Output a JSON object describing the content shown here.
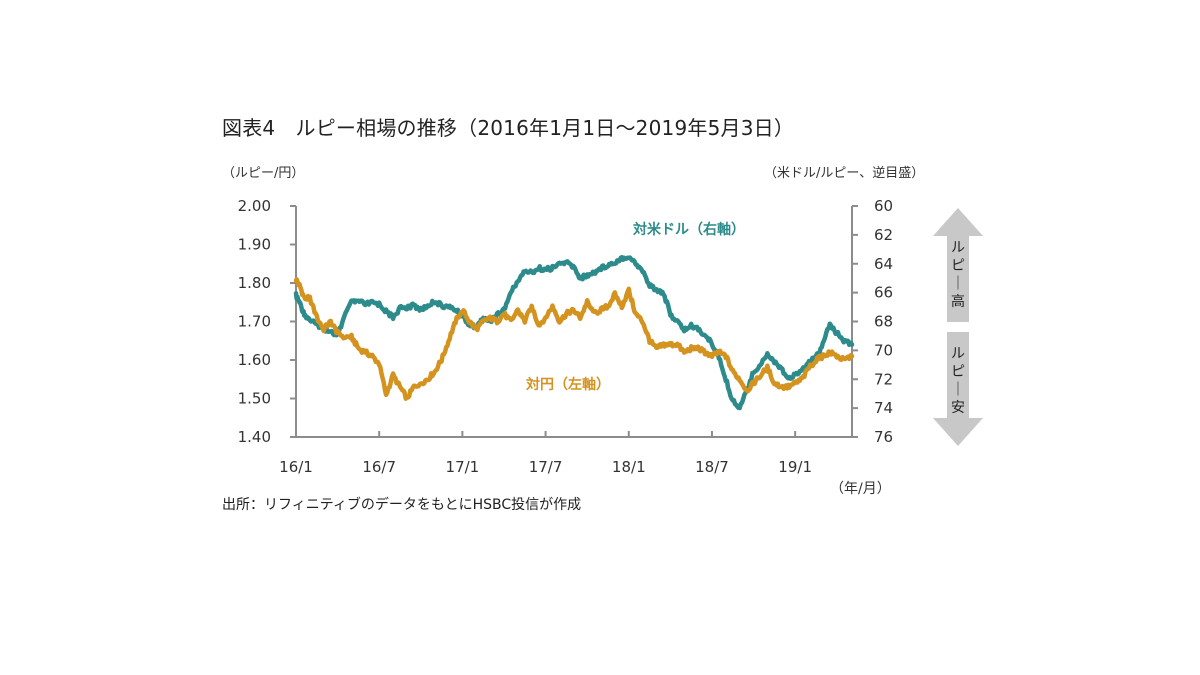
{
  "chart_data": {
    "type": "line",
    "title": "図表4　ルピー相場の推移（2016年1月1日～2019年5月3日）",
    "ylabel_left": "（ルピー/円）",
    "ylabel_right": "（米ドル/ルピー、逆目盛）",
    "xlabel": "（年/月）",
    "source": "出所：リフィニティブのデータをもとにHSBC投信が作成",
    "x_ticks": [
      "16/1",
      "16/7",
      "17/1",
      "17/7",
      "18/1",
      "18/7",
      "19/1"
    ],
    "y_left": {
      "ticks": [
        "2.00",
        "1.90",
        "1.80",
        "1.70",
        "1.60",
        "1.50",
        "1.40"
      ],
      "lim": [
        1.4,
        2.0
      ]
    },
    "y_right": {
      "ticks": [
        "60",
        "62",
        "64",
        "66",
        "68",
        "70",
        "72",
        "74",
        "76"
      ],
      "lim": [
        60,
        76
      ],
      "inverted": true
    },
    "x_range_months": [
      0,
      40.1
    ],
    "grid": false,
    "annotations": {
      "up_arrow": "ルピー高",
      "down_arrow": "ルピー安"
    },
    "series": [
      {
        "name": "対米ドル（右軸）",
        "axis": "right",
        "color": "#2e8b8b",
        "x": [
          0,
          0.3,
          0.6,
          1,
          1.5,
          2,
          2.5,
          3,
          3.5,
          4,
          4.5,
          5,
          5.5,
          6,
          6.5,
          7,
          7.5,
          8,
          8.5,
          9,
          9.5,
          10,
          10.5,
          11,
          11.5,
          12,
          12.5,
          13,
          13.5,
          14,
          14.5,
          15,
          15.5,
          16,
          16.5,
          17,
          17.5,
          18,
          18.5,
          19,
          19.5,
          20,
          20.5,
          21,
          21.5,
          22,
          22.5,
          23,
          23.5,
          24,
          24.5,
          25,
          25.5,
          26,
          26.5,
          27,
          27.5,
          28,
          28.5,
          29,
          29.5,
          30,
          30.5,
          31,
          31.5,
          32,
          32.5,
          33,
          33.5,
          34,
          34.5,
          35,
          35.5,
          36,
          36.5,
          37,
          37.5,
          38,
          38.5,
          39,
          39.5,
          40.1
        ],
        "values": [
          66.2,
          66.8,
          67.5,
          67.9,
          68.2,
          68.5,
          68.7,
          69.0,
          67.6,
          66.7,
          66.6,
          66.8,
          66.7,
          66.8,
          67.3,
          67.7,
          67.1,
          67.0,
          66.9,
          67.2,
          66.9,
          66.6,
          66.9,
          67.0,
          67.2,
          67.6,
          68.2,
          68.4,
          67.8,
          68.0,
          67.5,
          67.2,
          66.0,
          65.2,
          64.5,
          64.6,
          64.3,
          64.4,
          64.3,
          64.0,
          63.9,
          64.2,
          65.0,
          64.8,
          64.6,
          64.3,
          64.1,
          63.9,
          63.6,
          63.5,
          64.0,
          64.5,
          65.5,
          65.8,
          66.0,
          67.5,
          68.0,
          68.6,
          68.3,
          68.5,
          69.0,
          69.5,
          70.5,
          72.0,
          73.5,
          74.0,
          72.8,
          71.5,
          71.0,
          70.2,
          70.8,
          71.2,
          72.0,
          71.6,
          71.4,
          70.8,
          70.5,
          69.6,
          68.2,
          68.8,
          69.3,
          69.6
        ]
      },
      {
        "name": "対円（左軸）",
        "axis": "left",
        "color": "#d4921f",
        "x": [
          0,
          0.3,
          0.6,
          1,
          1.5,
          2,
          2.5,
          3,
          3.5,
          4,
          4.5,
          5,
          5.5,
          6,
          6.5,
          7,
          7.5,
          8,
          8.5,
          9,
          9.5,
          10,
          10.5,
          11,
          11.5,
          12,
          12.5,
          13,
          13.5,
          14,
          14.5,
          15,
          15.5,
          16,
          16.5,
          17,
          17.5,
          18,
          18.5,
          19,
          19.5,
          20,
          20.5,
          21,
          21.5,
          22,
          22.5,
          23,
          23.5,
          24,
          24.5,
          25,
          25.5,
          26,
          26.5,
          27,
          27.5,
          28,
          28.5,
          29,
          29.5,
          30,
          30.5,
          31,
          31.5,
          32,
          32.5,
          33,
          33.5,
          34,
          34.5,
          35,
          35.5,
          36,
          36.5,
          37,
          37.5,
          38,
          38.5,
          39,
          39.5,
          40.1
        ],
        "values": [
          1.81,
          1.79,
          1.76,
          1.76,
          1.71,
          1.68,
          1.7,
          1.67,
          1.66,
          1.66,
          1.63,
          1.62,
          1.61,
          1.59,
          1.51,
          1.56,
          1.53,
          1.5,
          1.53,
          1.54,
          1.55,
          1.57,
          1.6,
          1.65,
          1.7,
          1.73,
          1.7,
          1.68,
          1.7,
          1.71,
          1.7,
          1.72,
          1.7,
          1.73,
          1.7,
          1.74,
          1.69,
          1.71,
          1.74,
          1.7,
          1.72,
          1.73,
          1.71,
          1.75,
          1.72,
          1.73,
          1.74,
          1.77,
          1.74,
          1.78,
          1.72,
          1.7,
          1.65,
          1.63,
          1.64,
          1.64,
          1.64,
          1.62,
          1.63,
          1.63,
          1.62,
          1.61,
          1.62,
          1.61,
          1.57,
          1.55,
          1.52,
          1.54,
          1.56,
          1.58,
          1.54,
          1.53,
          1.53,
          1.54,
          1.55,
          1.58,
          1.6,
          1.61,
          1.62,
          1.61,
          1.6,
          1.61
        ]
      }
    ]
  }
}
